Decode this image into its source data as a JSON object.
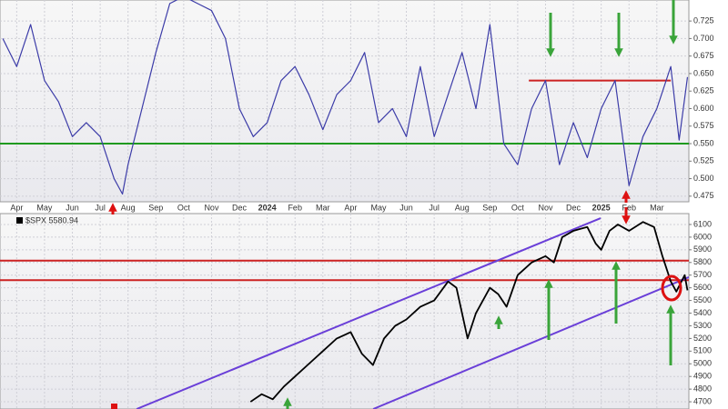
{
  "chart_data": [
    {
      "type": "line",
      "xlim": [
        -0.6,
        24.15
      ],
      "xticks": [
        {
          "value": 0,
          "label": "Apr"
        },
        {
          "value": 1,
          "label": "May"
        },
        {
          "value": 2,
          "label": "Jun"
        },
        {
          "value": 3,
          "label": "Jul"
        },
        {
          "value": 4,
          "label": "Aug"
        },
        {
          "value": 5,
          "label": "Sep"
        },
        {
          "value": 6,
          "label": "Oct"
        },
        {
          "value": 7,
          "label": "Nov"
        },
        {
          "value": 8,
          "label": "Dec"
        },
        {
          "value": 9,
          "label": "2024"
        },
        {
          "value": 10,
          "label": "Feb"
        },
        {
          "value": 11,
          "label": "Mar"
        },
        {
          "value": 12,
          "label": "Apr"
        },
        {
          "value": 13,
          "label": "May"
        },
        {
          "value": 14,
          "label": "Jun"
        },
        {
          "value": 15,
          "label": "Jul"
        },
        {
          "value": 16,
          "label": "Aug"
        },
        {
          "value": 17,
          "label": "Sep"
        },
        {
          "value": 18,
          "label": "Oct"
        },
        {
          "value": 19,
          "label": "Nov"
        },
        {
          "value": 20,
          "label": "Dec"
        },
        {
          "value": 21,
          "label": "2025"
        },
        {
          "value": 22,
          "label": "Feb"
        },
        {
          "value": 23,
          "label": "Mar"
        }
      ],
      "ylim": [
        0.467,
        0.755
      ],
      "yticks": [
        0.475,
        {
          "value": 0.5,
          "label": "0.500"
        },
        0.525,
        {
          "value": 0.55,
          "label": "0.550"
        },
        0.575,
        {
          "value": 0.6,
          "label": "0.600"
        },
        0.625,
        {
          "value": 0.65,
          "label": "0.650"
        },
        0.675,
        {
          "value": 0.7,
          "label": "0.700"
        },
        0.725
      ],
      "grid": true,
      "x": [
        -0.5,
        0,
        0.5,
        1,
        1.5,
        2,
        2.5,
        3,
        3.5,
        3.8,
        4,
        4.5,
        5,
        5.5,
        6,
        6.5,
        7,
        7.5,
        8,
        8.5,
        9,
        9.5,
        10,
        10.5,
        11,
        11.5,
        12,
        12.5,
        13,
        13.5,
        14,
        14.5,
        15,
        15.5,
        16,
        16.5,
        17,
        17.5,
        18,
        18.5,
        19,
        19.5,
        20,
        20.5,
        21,
        21.5,
        22,
        22.5,
        23,
        23.5,
        23.8,
        24.1
      ],
      "series": [
        {
          "color": "#3c3ca8",
          "values": [
            0.7,
            0.66,
            0.72,
            0.64,
            0.61,
            0.56,
            0.58,
            0.56,
            0.5,
            0.478,
            0.52,
            0.6,
            0.68,
            0.75,
            0.76,
            0.75,
            0.74,
            0.7,
            0.6,
            0.56,
            0.58,
            0.64,
            0.66,
            0.62,
            0.57,
            0.62,
            0.64,
            0.68,
            0.58,
            0.6,
            0.56,
            0.66,
            0.56,
            0.62,
            0.68,
            0.6,
            0.72,
            0.55,
            0.52,
            0.6,
            0.64,
            0.52,
            0.58,
            0.53,
            0.6,
            0.64,
            0.49,
            0.56,
            0.6,
            0.66,
            0.555,
            0.645
          ]
        }
      ],
      "hlines": [
        {
          "y": 0.55,
          "x": [
            -0.6,
            24.15
          ],
          "color": "#1f9a1f"
        },
        {
          "y": 0.64,
          "x": [
            18.4,
            23.5
          ],
          "color": "#cc2222"
        }
      ]
    },
    {
      "type": "line",
      "xlim": [
        -0.6,
        24.15
      ],
      "ylim": [
        4643,
        6186
      ],
      "yticks": [
        4700,
        4800,
        4900,
        5000,
        5100,
        5200,
        5300,
        5400,
        5500,
        5600,
        5700,
        5800,
        5900,
        6000,
        6100
      ],
      "grid": true,
      "x": [
        8.4,
        8.8,
        9.2,
        9.6,
        10,
        10.5,
        11,
        11.5,
        12,
        12.4,
        12.8,
        13.2,
        13.6,
        14,
        14.5,
        15,
        15.5,
        15.8,
        16,
        16.2,
        16.5,
        17,
        17.3,
        17.6,
        18,
        18.5,
        19,
        19.3,
        19.6,
        20,
        20.5,
        20.8,
        21,
        21.3,
        21.6,
        22,
        22.5,
        22.9,
        23.2,
        23.5,
        23.7,
        24,
        24.1
      ],
      "series": [
        {
          "name": "$SPX 5580.94",
          "color": "#000000",
          "values": [
            4700,
            4760,
            4720,
            4820,
            4900,
            5000,
            5100,
            5200,
            5250,
            5080,
            4990,
            5200,
            5300,
            5350,
            5450,
            5500,
            5650,
            5600,
            5400,
            5200,
            5400,
            5600,
            5550,
            5450,
            5700,
            5800,
            5850,
            5800,
            6000,
            6050,
            6080,
            5950,
            5900,
            6050,
            6100,
            6050,
            6120,
            6080,
            5850,
            5650,
            5570,
            5700,
            5580
          ]
        }
      ],
      "hlines": [
        {
          "y": 5815,
          "x": [
            -0.6,
            24.15
          ],
          "color": "#cc2222"
        },
        {
          "y": 5660,
          "x": [
            -0.6,
            24.15
          ],
          "color": "#cc2222"
        }
      ],
      "channel": [
        {
          "x": [
            4.31,
            20.98
          ],
          "y": [
            4643,
            6150
          ],
          "color": "#6a3fd8"
        },
        {
          "x": [
            12.81,
            24.15
          ],
          "y": [
            4643,
            5684
          ],
          "color": "#6a3fd8"
        }
      ]
    }
  ]
}
